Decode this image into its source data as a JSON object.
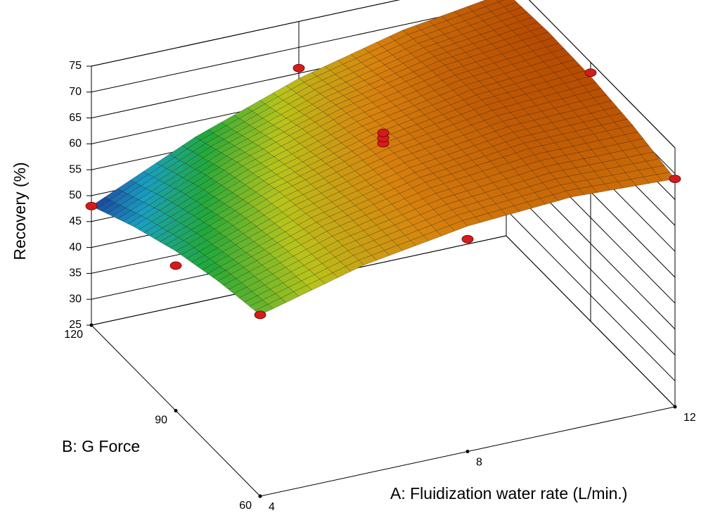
{
  "chart_data": {
    "type": "surface3d",
    "x_label": "A: Fluidization water rate (L/min.)",
    "y_label": "B: G Force",
    "z_label": "Recovery (%)",
    "x": [
      4,
      6,
      8,
      10,
      12
    ],
    "y": [
      60,
      75,
      90,
      105,
      120
    ],
    "z": [
      [
        60,
        65.3,
        68.5,
        69.8,
        69
      ],
      [
        58.3,
        64.5,
        68.7,
        70.9,
        71.1
      ],
      [
        55.8,
        62.9,
        68,
        71.1,
        72.3
      ],
      [
        52.3,
        60.4,
        66.4,
        70.5,
        72.6
      ],
      [
        48,
        57,
        64,
        69,
        72
      ]
    ],
    "xlim": [
      4,
      12
    ],
    "ylim": [
      60,
      120
    ],
    "zlim": [
      25,
      75
    ],
    "xticks": [
      4,
      8,
      12
    ],
    "yticks": [
      60,
      90,
      120
    ],
    "zticks": [
      25,
      30,
      35,
      40,
      45,
      50,
      55,
      60,
      65,
      70,
      75
    ],
    "colormap": [
      "#1e3c9e",
      "#1a9fc0",
      "#22a83a",
      "#b8c41c",
      "#d8820e",
      "#b54800"
    ],
    "points": {
      "color": "#d41c1c",
      "x": [
        4,
        4,
        12,
        4,
        8,
        8,
        12,
        8,
        8,
        8
      ],
      "y": [
        60,
        120,
        60,
        90,
        60,
        120,
        90,
        90,
        90,
        90
      ],
      "z": [
        60,
        48,
        69,
        53,
        66,
        66,
        73,
        68,
        69,
        70
      ]
    }
  }
}
